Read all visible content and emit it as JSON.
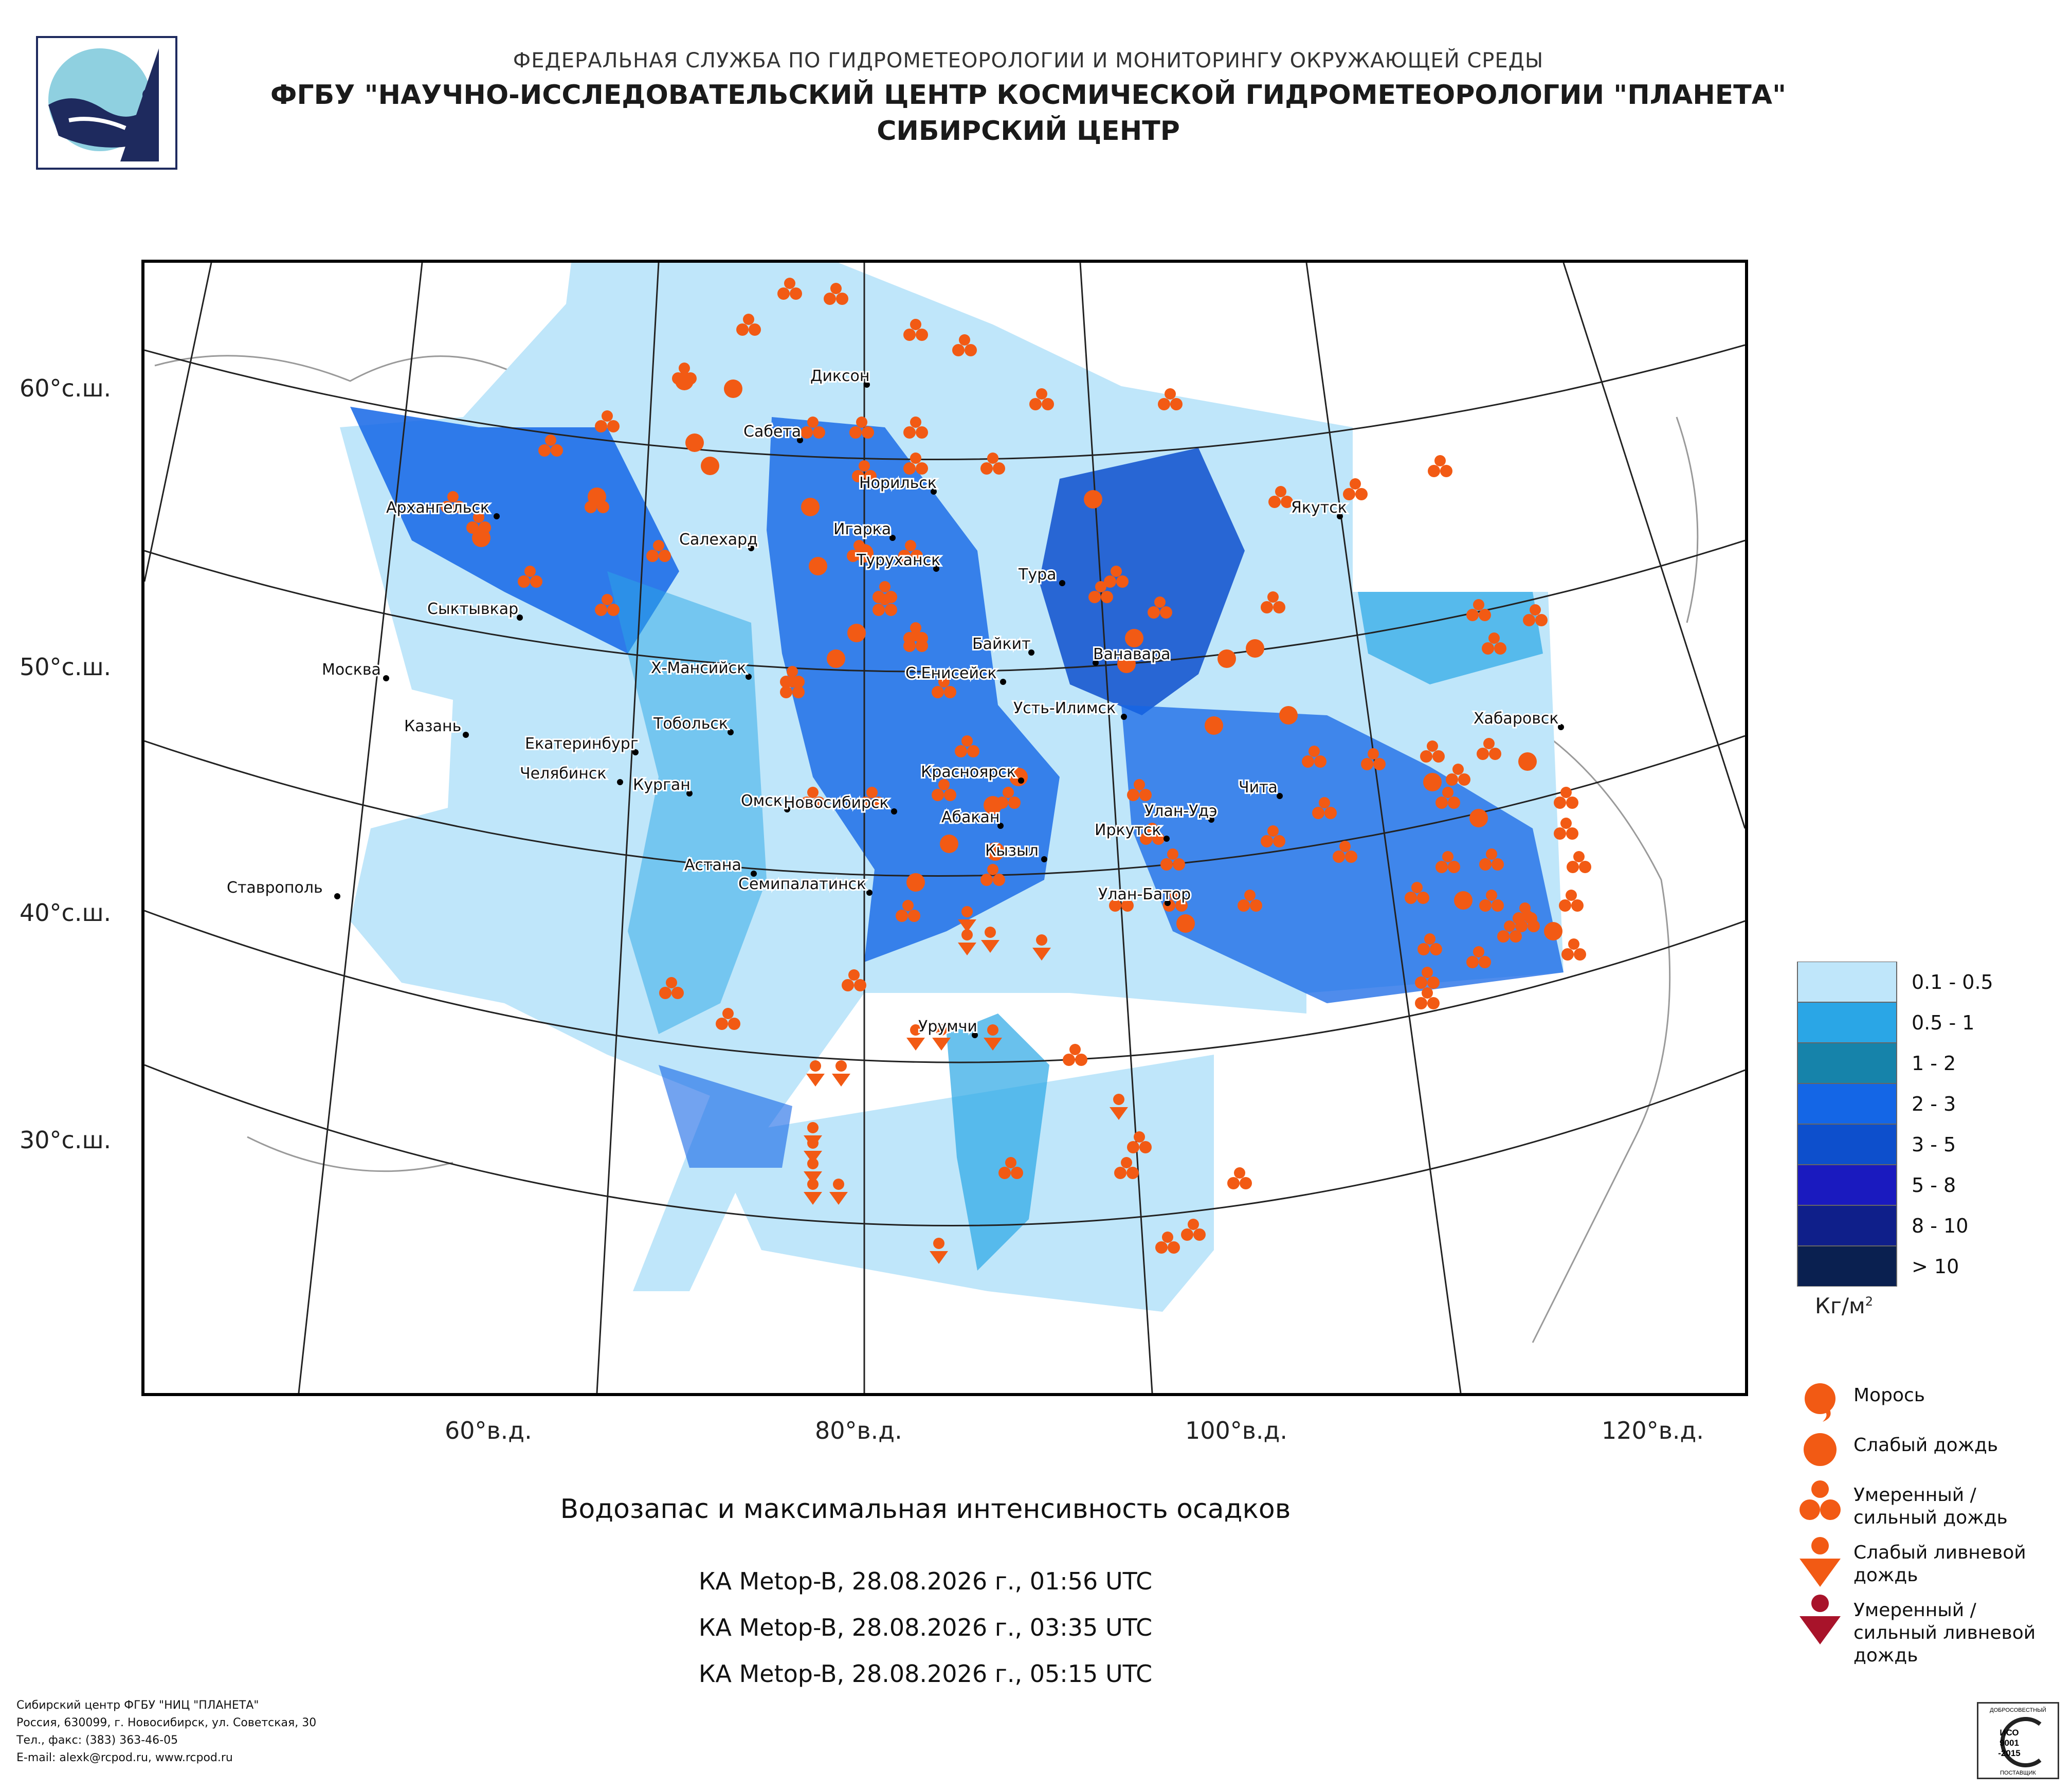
{
  "header": {
    "line1": "ФЕДЕРАЛЬНАЯ СЛУЖБА ПО ГИДРОМЕТЕОРОЛОГИИ И МОНИТОРИНГУ ОКРУЖАЮЩЕЙ СРЕДЫ",
    "line2": "ФГБУ \"НАУЧНО-ИССЛЕДОВАТЕЛЬСКИЙ ЦЕНТР КОСМИЧЕСКОЙ ГИДРОМЕТЕОРОЛОГИИ \"ПЛАНЕТА\"",
    "line3": "СИБИРСКИЙ ЦЕНТР"
  },
  "map": {
    "lat_labels": [
      "60°с.ш.",
      "50°с.ш.",
      "40°с.ш.",
      "30°с.ш."
    ],
    "lon_labels": [
      "60°в.д.",
      "80°в.д.",
      "100°в.д.",
      "120°в.д."
    ],
    "cities": [
      "Диксон",
      "Сабета",
      "Норильск",
      "Архангельск",
      "Салехард",
      "Игарка",
      "Туруханск",
      "Тура",
      "Якутск",
      "Сыктывкар",
      "Байкит",
      "Ванавара",
      "Москва",
      "Х-Мансийск",
      "С.Енисейск",
      "Усть-Илимск",
      "Хабаровск",
      "Казань",
      "Екатеринбург",
      "Тобольск",
      "Красноярск",
      "Чита",
      "Челябинск",
      "Курган",
      "Омск",
      "Новосибирск",
      "Абакан",
      "Улан-Удэ",
      "Иркутск",
      "Кызыл",
      "Астана",
      "Семипалатинск",
      "Улан-Батор",
      "Ставрополь",
      "Урумчи"
    ]
  },
  "legend": {
    "ranges": [
      {
        "label": "0.1 - 0.5",
        "color": "#bfe6fa"
      },
      {
        "label": "0.5 - 1",
        "color": "#2aa6e6"
      },
      {
        "label": "1 - 2",
        "color": "#1683aa"
      },
      {
        "label": "2 - 3",
        "color": "#1466e6"
      },
      {
        "label": "3 - 5",
        "color": "#0d4fcc"
      },
      {
        "label": "5 - 8",
        "color": "#1a1abf"
      },
      {
        "label": "8 - 10",
        "color": "#0f1f8a"
      },
      {
        "label": "> 10",
        "color": "#0a2050"
      }
    ],
    "units": "Кг/м",
    "units_sup": "2",
    "symbols": [
      "Морось",
      "Слабый дождь",
      "Умеренный / сильный дождь",
      "Слабый ливневой дождь",
      "Умеренный / сильный ливневой дождь"
    ]
  },
  "caption": "Водозапас и максимальная интенсивность осадков",
  "passes": [
    "КА Metop-B, 28.08.2026 г., 01:56 UTC",
    "КА Metop-B, 28.08.2026 г., 03:35 UTC",
    "КА Metop-B, 28.08.2026 г., 05:15 UTC"
  ],
  "footer": {
    "line1": "Сибирский центр ФГБУ \"НИЦ \"ПЛАНЕТА\"",
    "line2": "Россия, 630099, г. Новосибирск, ул. Советская, 30",
    "line3": "Тел., факс: (383) 363-46-05",
    "line4": "E-mail: alexk@rcpod.ru, www.rcpod.ru"
  },
  "iso": {
    "top": "ДОБРОСОВЕСТНЫЙ",
    "l1": "ИСО",
    "l2": "9001",
    "l3": "-2015",
    "bottom": "ПОСТАВЩИК"
  },
  "colors": {
    "precip": "#f25a14",
    "heavy_shower": "#a8132a",
    "frame": "#000000"
  }
}
